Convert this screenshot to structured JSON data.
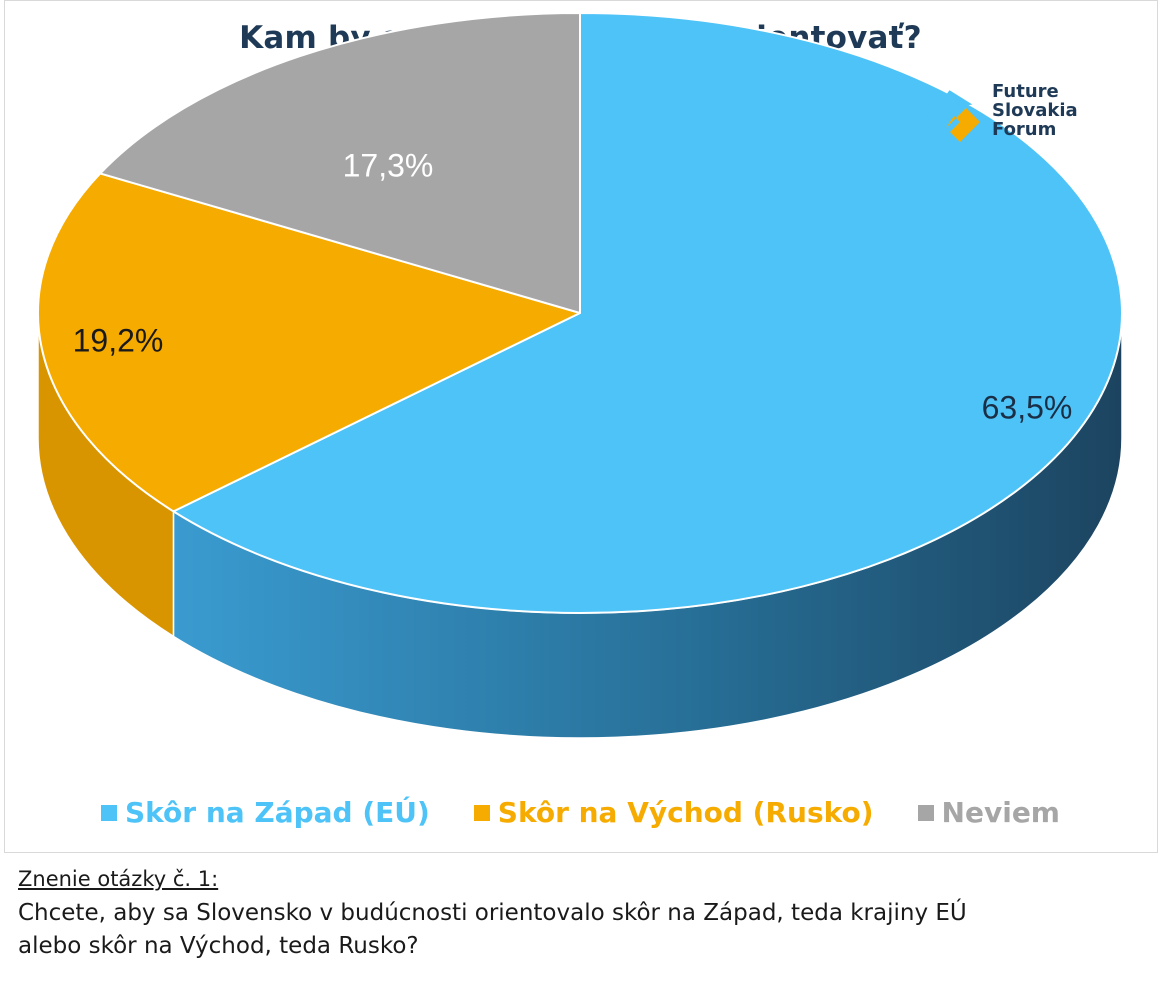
{
  "chart_data": {
    "type": "pie",
    "title": "Kam by sa malo Slovensko orientovať?",
    "slices": [
      {
        "label": "Skôr na Západ (EÚ)",
        "value": 63.5,
        "display": "63,5%",
        "color": "#4dc3f7",
        "side_color": "#2f7fab",
        "side_color_dark": "#1f4a66",
        "label_color": "#1a2e45"
      },
      {
        "label": "Skôr na Východ (Rusko)",
        "value": 19.2,
        "display": "19,2%",
        "color": "#f6ab00",
        "side_color": "#d99500",
        "side_color_dark": "#b77a00",
        "label_color": "#1a1a1a"
      },
      {
        "label": "Neviem",
        "value": 17.3,
        "display": "17,3%",
        "color": "#a6a6a6",
        "side_color": "#7f7f7f",
        "side_color_dark": "#6a6a6a",
        "label_color": "#ffffff"
      }
    ],
    "legend_position": "bottom"
  },
  "logo": {
    "line1": "Future",
    "line2": "Slovakia",
    "line3": "Forum",
    "color_blue": "#4dc3f7",
    "color_orange": "#f6ab00"
  },
  "legend": [
    {
      "label": "Skôr na Západ (EÚ)",
      "color": "#4dc3f7"
    },
    {
      "label": "Skôr na Východ (Rusko)",
      "color": "#f6ab00"
    },
    {
      "label": "Neviem",
      "color": "#a6a6a6"
    }
  ],
  "footer": {
    "heading": "Znenie otázky č. 1:",
    "question_line1": "Chcete, aby sa Slovensko v budúcnosti orientovalo skôr na Západ, teda krajiny EÚ",
    "question_line2": "alebo skôr na Východ, teda Rusko?"
  }
}
